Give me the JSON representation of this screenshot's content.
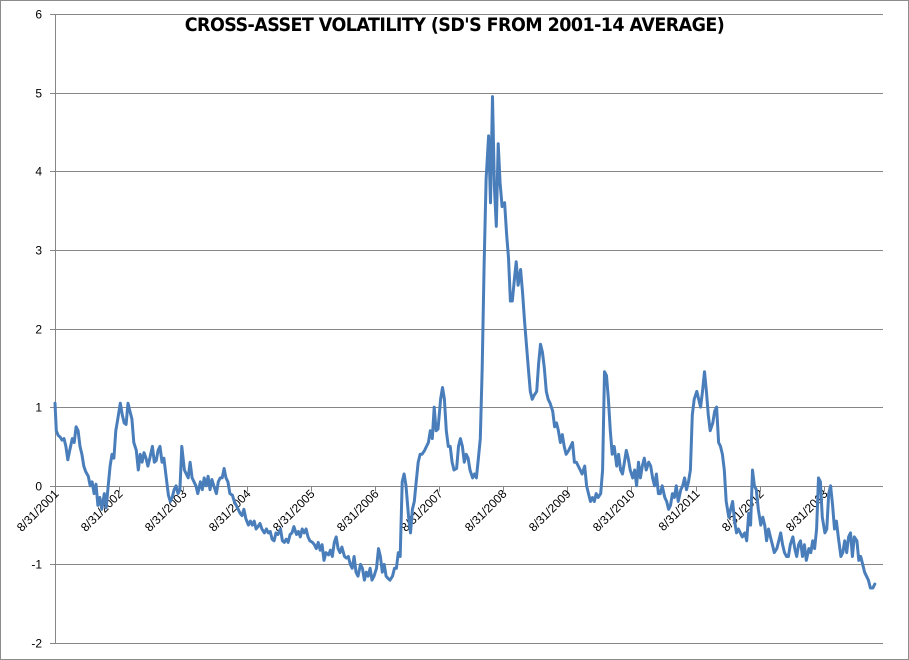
{
  "chart_data": {
    "type": "line",
    "title": "CROSS-ASSET VOLATILITY (SD'S FROM 2001-14 AVERAGE)",
    "xlabel": "",
    "ylabel": "",
    "ylim": [
      -2,
      6
    ],
    "yticks": [
      "6",
      "5",
      "4",
      "3",
      "2",
      "1",
      "0",
      "-1",
      "-2"
    ],
    "xticks": [
      "8/31/2001",
      "8/31/2002",
      "8/31/2003",
      "8/31/2004",
      "8/31/2005",
      "8/31/2006",
      "8/31/2007",
      "8/31/2008",
      "8/31/2009",
      "8/31/2010",
      "8/31/2011",
      "8/31/2012",
      "8/31/2013"
    ],
    "grid": true,
    "legend": null,
    "series": [
      {
        "name": "Cross-asset volatility",
        "color": "#4a7ebb",
        "x_years_since_2001_08_31": [
          0.0,
          0.02,
          0.05,
          0.08,
          0.11,
          0.14,
          0.17,
          0.2,
          0.23,
          0.27,
          0.3,
          0.33,
          0.36,
          0.39,
          0.42,
          0.45,
          0.48,
          0.52,
          0.55,
          0.58,
          0.61,
          0.64,
          0.67,
          0.7,
          0.73,
          0.77,
          0.8,
          0.83,
          0.86,
          0.89,
          0.92,
          0.95,
          0.98,
          1.02,
          1.05,
          1.08,
          1.11,
          1.14,
          1.17,
          1.2,
          1.23,
          1.27,
          1.3,
          1.33,
          1.36,
          1.39,
          1.42,
          1.45,
          1.48,
          1.52,
          1.55,
          1.58,
          1.61,
          1.64,
          1.67,
          1.7,
          1.73,
          1.77,
          1.8,
          1.83,
          1.86,
          1.89,
          1.92,
          1.95,
          1.98,
          2.02,
          2.05,
          2.08,
          2.11,
          2.14,
          2.17,
          2.2,
          2.23,
          2.27,
          2.3,
          2.33,
          2.36,
          2.39,
          2.42,
          2.45,
          2.48,
          2.52,
          2.55,
          2.58,
          2.61,
          2.64,
          2.67,
          2.7,
          2.73,
          2.77,
          2.8,
          2.83,
          2.86,
          2.89,
          2.92,
          2.95,
          2.98,
          3.02,
          3.05,
          3.08,
          3.11,
          3.14,
          3.17,
          3.2,
          3.23,
          3.27,
          3.3,
          3.33,
          3.36,
          3.39,
          3.42,
          3.45,
          3.48,
          3.52,
          3.55,
          3.58,
          3.61,
          3.64,
          3.67,
          3.7,
          3.73,
          3.77,
          3.8,
          3.83,
          3.86,
          3.89,
          3.92,
          3.95,
          3.98,
          4.02,
          4.05,
          4.08,
          4.11,
          4.14,
          4.17,
          4.2,
          4.23,
          4.27,
          4.3,
          4.33,
          4.36,
          4.39,
          4.42,
          4.45,
          4.48,
          4.52,
          4.55,
          4.58,
          4.61,
          4.64,
          4.67,
          4.7,
          4.73,
          4.77,
          4.8,
          4.83,
          4.86,
          4.89,
          4.92,
          4.95,
          4.98,
          5.02,
          5.05,
          5.08,
          5.11,
          5.14,
          5.17,
          5.2,
          5.23,
          5.27,
          5.3,
          5.33,
          5.36,
          5.39,
          5.42,
          5.45,
          5.48,
          5.52,
          5.55,
          5.58,
          5.61,
          5.64,
          5.67,
          5.7,
          5.73,
          5.77,
          5.8,
          5.83,
          5.86,
          5.89,
          5.92,
          5.95,
          5.98,
          6.02,
          6.05,
          6.08,
          6.11,
          6.14,
          6.17,
          6.2,
          6.23,
          6.27,
          6.3,
          6.33,
          6.36,
          6.39,
          6.42,
          6.45,
          6.48,
          6.52,
          6.55,
          6.58,
          6.61,
          6.64,
          6.67,
          6.7,
          6.73,
          6.77,
          6.8,
          6.83,
          6.86,
          6.89,
          6.92,
          6.95,
          6.98,
          7.02,
          7.05,
          7.08,
          7.11,
          7.14,
          7.17,
          7.2,
          7.23,
          7.27,
          7.3,
          7.33,
          7.36,
          7.39,
          7.42,
          7.45,
          7.48,
          7.52,
          7.55,
          7.58,
          7.61,
          7.64,
          7.67,
          7.7,
          7.73,
          7.77,
          7.8,
          7.83,
          7.86,
          7.89,
          7.92,
          7.95,
          7.98,
          8.02,
          8.05,
          8.08,
          8.11,
          8.14,
          8.17,
          8.2,
          8.23,
          8.27,
          8.3,
          8.33,
          8.36,
          8.39,
          8.42,
          8.45,
          8.48,
          8.52,
          8.55,
          8.58,
          8.61,
          8.64,
          8.67,
          8.7,
          8.73,
          8.77,
          8.8,
          8.83,
          8.86,
          8.89,
          8.92,
          8.95,
          8.98,
          9.02,
          9.05,
          9.08,
          9.11,
          9.14,
          9.17,
          9.2,
          9.23,
          9.27,
          9.3,
          9.33,
          9.36,
          9.39,
          9.42,
          9.45,
          9.48,
          9.52,
          9.55,
          9.58,
          9.61,
          9.64,
          9.67,
          9.7,
          9.73,
          9.77,
          9.8,
          9.83,
          9.86,
          9.89,
          9.92,
          9.95,
          9.98,
          10.02,
          10.05,
          10.08,
          10.11,
          10.14,
          10.17,
          10.2,
          10.23,
          10.27,
          10.3,
          10.33,
          10.36,
          10.39,
          10.42,
          10.45,
          10.48,
          10.52,
          10.55,
          10.58,
          10.61,
          10.64,
          10.67,
          10.7,
          10.73,
          10.77,
          10.8,
          10.83,
          10.86,
          10.89,
          10.92,
          10.95,
          10.98,
          11.02,
          11.05,
          11.08,
          11.11,
          11.14,
          11.17,
          11.2,
          11.23,
          11.27,
          11.3,
          11.33,
          11.36,
          11.39,
          11.42,
          11.45,
          11.48,
          11.52,
          11.55,
          11.58,
          11.61,
          11.64,
          11.67,
          11.7,
          11.73,
          11.77,
          11.8,
          11.83,
          11.86,
          11.89,
          11.92,
          11.95,
          11.98,
          12.02,
          12.05,
          12.08,
          12.11,
          12.14,
          12.17,
          12.2,
          12.23,
          12.27,
          12.3,
          12.33,
          12.36,
          12.39,
          12.42,
          12.45,
          12.48,
          12.52,
          12.55,
          12.58,
          12.61,
          12.64,
          12.67,
          12.7,
          12.73,
          12.77,
          12.8,
          12.83,
          12.86,
          12.89,
          12.92
        ],
        "values": [
          1.05,
          0.7,
          0.64,
          0.62,
          0.58,
          0.6,
          0.5,
          0.33,
          0.45,
          0.6,
          0.55,
          0.75,
          0.7,
          0.5,
          0.4,
          0.25,
          0.18,
          0.12,
          0.0,
          0.05,
          -0.1,
          0.02,
          -0.25,
          -0.15,
          -0.3,
          -0.1,
          -0.28,
          0.0,
          0.25,
          0.4,
          0.35,
          0.7,
          0.85,
          1.05,
          0.9,
          0.8,
          0.78,
          1.05,
          0.95,
          0.85,
          0.55,
          0.45,
          0.2,
          0.4,
          0.3,
          0.42,
          0.35,
          0.25,
          0.35,
          0.5,
          0.3,
          0.32,
          0.45,
          0.5,
          0.3,
          0.35,
          0.15,
          -0.12,
          -0.2,
          -0.15,
          -0.05,
          0.0,
          -0.1,
          -0.05,
          0.5,
          0.2,
          0.15,
          0.1,
          0.3,
          0.1,
          0.05,
          0.0,
          -0.1,
          0.05,
          -0.05,
          0.1,
          0.0,
          0.12,
          -0.05,
          0.08,
          0.0,
          -0.1,
          0.05,
          0.1,
          0.1,
          0.22,
          0.1,
          0.05,
          -0.1,
          -0.12,
          -0.2,
          -0.25,
          -0.3,
          -0.35,
          -0.38,
          -0.3,
          -0.42,
          -0.5,
          -0.45,
          -0.5,
          -0.45,
          -0.55,
          -0.52,
          -0.48,
          -0.55,
          -0.6,
          -0.55,
          -0.6,
          -0.58,
          -0.68,
          -0.7,
          -0.6,
          -0.62,
          -0.55,
          -0.7,
          -0.72,
          -0.68,
          -0.72,
          -0.62,
          -0.6,
          -0.52,
          -0.62,
          -0.58,
          -0.65,
          -0.55,
          -0.6,
          -0.55,
          -0.65,
          -0.7,
          -0.72,
          -0.75,
          -0.8,
          -0.72,
          -0.82,
          -0.75,
          -0.95,
          -0.85,
          -0.88,
          -0.82,
          -0.9,
          -0.72,
          -0.65,
          -0.8,
          -0.85,
          -0.78,
          -0.9,
          -0.92,
          -0.9,
          -1.0,
          -1.05,
          -0.9,
          -1.1,
          -1.15,
          -1.0,
          -1.05,
          -1.2,
          -1.1,
          -1.15,
          -1.05,
          -1.2,
          -1.15,
          -1.05,
          -0.8,
          -0.9,
          -1.1,
          -1.0,
          -1.15,
          -1.18,
          -1.2,
          -1.15,
          -1.05,
          -1.05,
          -0.85,
          -0.9,
          0.05,
          0.15,
          0.0,
          -0.4,
          -0.6,
          -0.3,
          -0.2,
          0.05,
          0.3,
          0.4,
          0.4,
          0.45,
          0.5,
          0.55,
          0.7,
          0.6,
          1.0,
          0.7,
          0.72,
          1.1,
          1.25,
          1.1,
          0.7,
          0.5,
          0.5,
          0.3,
          0.2,
          0.22,
          0.5,
          0.6,
          0.5,
          0.3,
          0.4,
          0.35,
          0.2,
          0.1,
          0.15,
          0.1,
          0.35,
          0.6,
          1.5,
          2.8,
          3.9,
          4.45,
          3.6,
          4.95,
          3.8,
          3.3,
          4.35,
          3.85,
          3.55,
          3.6,
          3.2,
          2.9,
          2.35,
          2.35,
          2.6,
          2.85,
          2.55,
          2.75,
          2.45,
          2.1,
          1.8,
          1.5,
          1.2,
          1.1,
          1.15,
          1.2,
          1.55,
          1.8,
          1.7,
          1.5,
          1.2,
          1.1,
          1.05,
          0.95,
          0.75,
          0.8,
          0.7,
          0.55,
          0.65,
          0.5,
          0.4,
          0.45,
          0.5,
          0.55,
          0.3,
          0.3,
          0.25,
          0.2,
          0.15,
          0.25,
          0.0,
          -0.1,
          -0.2,
          -0.15,
          -0.2,
          -0.1,
          -0.15,
          -0.1,
          0.2,
          1.45,
          1.4,
          1.1,
          0.7,
          0.4,
          0.5,
          0.25,
          0.4,
          0.2,
          0.15,
          0.3,
          0.45,
          0.35,
          0.2,
          0.1,
          0.2,
          0.0,
          0.3,
          0.1,
          0.25,
          0.35,
          0.2,
          0.3,
          0.25,
          0.1,
          0.0,
          0.15,
          -0.1,
          -0.1,
          0.0,
          -0.15,
          -0.2,
          -0.3,
          -0.25,
          -0.1,
          -0.15,
          0.0,
          -0.2,
          -0.05,
          0.0,
          0.1,
          -0.05,
          0.05,
          0.2,
          0.9,
          1.1,
          1.2,
          1.1,
          1.0,
          1.2,
          1.45,
          1.2,
          0.9,
          0.7,
          0.8,
          0.95,
          1.0,
          0.55,
          0.5,
          0.4,
          0.2,
          -0.2,
          -0.4,
          -0.3,
          -0.2,
          -0.45,
          -0.6,
          -0.55,
          -0.6,
          -0.65,
          -0.6,
          -0.7,
          -0.35,
          -0.5,
          0.2,
          0.0,
          -0.05,
          -0.3,
          -0.5,
          -0.4,
          -0.5,
          -0.7,
          -0.55,
          -0.65,
          -0.75,
          -0.85,
          -0.8,
          -0.7,
          -0.6,
          -0.75,
          -0.85,
          -0.9,
          -0.9,
          -0.75,
          -0.65,
          -0.8,
          -0.9,
          -0.75,
          -0.7,
          -0.9,
          -0.75,
          -0.95,
          -0.8,
          -0.85,
          -0.7,
          -0.8,
          -0.55,
          0.1,
          0.05,
          -0.4,
          -0.6,
          -0.55,
          -0.1,
          0.0,
          -0.25,
          -0.55,
          -0.45,
          -0.65,
          -0.9,
          -0.85,
          -0.7,
          -0.85,
          -0.65,
          -0.6,
          -0.9,
          -0.65,
          -0.7,
          -0.95,
          -0.9,
          -1.0,
          -1.1,
          -1.15,
          -1.2,
          -1.3,
          -1.3,
          -1.25
        ]
      }
    ]
  }
}
